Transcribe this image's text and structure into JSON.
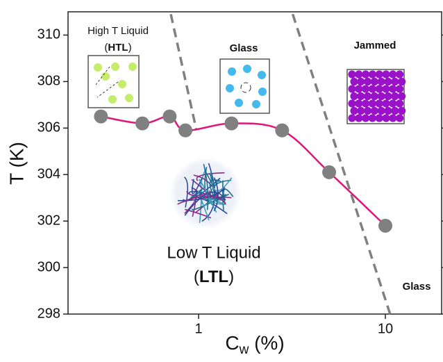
{
  "chart_data": {
    "type": "scatter",
    "xlabel": {
      "base": "C",
      "sub": "w",
      "rest": " (%)"
    },
    "ylabel": "T (K)",
    "xscale": "log",
    "xlim": [
      0.2,
      20
    ],
    "ylim": [
      298,
      311
    ],
    "xticks": [
      1,
      10
    ],
    "yticks": [
      298,
      300,
      302,
      304,
      306,
      308,
      310
    ],
    "series": [
      {
        "color": "#808080",
        "fit_color": "#e0157a",
        "x": [
          0.3,
          0.5,
          0.7,
          0.85,
          1.5,
          2.8,
          5,
          10
        ],
        "values": [
          306.5,
          306.2,
          306.5,
          305.9,
          306.2,
          305.9,
          304.1,
          301.8
        ]
      }
    ],
    "boundaries": [
      {
        "x": [
          0.71,
          0.97
        ],
        "y": [
          310.9,
          305.97
        ]
      },
      {
        "x": [
          3.19,
          10.6
        ],
        "y": [
          310.9,
          298
        ]
      }
    ],
    "boundary_color": "#808080",
    "annotations": {
      "htl_name": "High T Liquid",
      "htl_abbr": {
        "open": "(",
        "abbr": "HTL",
        "close": ")"
      },
      "glass_top": "Glass",
      "jammed": "Jammed",
      "ltl_name": "Low T Liquid",
      "ltl_abbr": {
        "open": "(",
        "abbr": "LTL",
        "close": ")"
      },
      "glass_bottom": "Glass"
    }
  }
}
